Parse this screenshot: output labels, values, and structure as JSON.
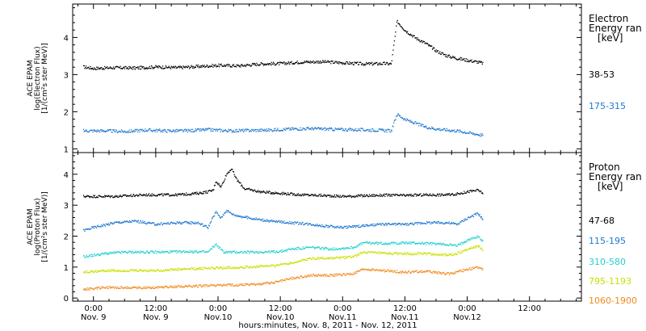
{
  "chart_data": {
    "type": "scatter",
    "x_axis": {
      "title": "hours:minutes, Nov. 8, 2011 - Nov. 12, 2011",
      "range_hours": [
        -4,
        94
      ],
      "ticks": [
        {
          "h": 0,
          "time": "0:00",
          "date": "Nov. 9"
        },
        {
          "h": 12,
          "time": "12:00",
          "date": "Nov. 9"
        },
        {
          "h": 24,
          "time": "0:00",
          "date": "Nov.10"
        },
        {
          "h": 36,
          "time": "12:00",
          "date": "Nov.10"
        },
        {
          "h": 48,
          "time": "0:00",
          "date": "Nov.11"
        },
        {
          "h": 60,
          "time": "12:00",
          "date": "Nov.11"
        },
        {
          "h": 72,
          "time": "0:00",
          "date": "Nov.12"
        },
        {
          "h": 84,
          "time": "12:00",
          "date": ""
        }
      ]
    },
    "panels": [
      {
        "id": "electron",
        "ylabel": [
          "ACE EPAM",
          "log(Electron Flux)",
          "[1/(cm²s ster MeV)]"
        ],
        "ylim": [
          0.9,
          4.9
        ],
        "yticks": [
          1,
          2,
          3,
          4
        ],
        "legend_title": [
          "Electron",
          "Energy ran",
          "[keV]"
        ],
        "series": [
          {
            "name": "38-53",
            "color": "#000000",
            "points": [
              [
                -2,
                3.22
              ],
              [
                0,
                3.18
              ],
              [
                4,
                3.2
              ],
              [
                8,
                3.19
              ],
              [
                12,
                3.22
              ],
              [
                16,
                3.2
              ],
              [
                20,
                3.23
              ],
              [
                24,
                3.26
              ],
              [
                28,
                3.25
              ],
              [
                32,
                3.3
              ],
              [
                36,
                3.31
              ],
              [
                40,
                3.35
              ],
              [
                44,
                3.36
              ],
              [
                48,
                3.33
              ],
              [
                52,
                3.3
              ],
              [
                56,
                3.31
              ],
              [
                57.3,
                3.3
              ],
              [
                58.4,
                4.45
              ],
              [
                60,
                4.2
              ],
              [
                62,
                4.0
              ],
              [
                64,
                3.85
              ],
              [
                66,
                3.65
              ],
              [
                68,
                3.52
              ],
              [
                70,
                3.45
              ],
              [
                72,
                3.4
              ],
              [
                74,
                3.35
              ],
              [
                75,
                3.32
              ]
            ]
          },
          {
            "name": "175-315",
            "color": "#1f78d0",
            "points": [
              [
                -2,
                1.5
              ],
              [
                2,
                1.5
              ],
              [
                6,
                1.48
              ],
              [
                10,
                1.52
              ],
              [
                14,
                1.5
              ],
              [
                18,
                1.5
              ],
              [
                22,
                1.53
              ],
              [
                26,
                1.5
              ],
              [
                30,
                1.51
              ],
              [
                34,
                1.52
              ],
              [
                38,
                1.55
              ],
              [
                42,
                1.56
              ],
              [
                46,
                1.54
              ],
              [
                50,
                1.53
              ],
              [
                54,
                1.52
              ],
              [
                57.3,
                1.5
              ],
              [
                58.4,
                1.95
              ],
              [
                60,
                1.8
              ],
              [
                62,
                1.7
              ],
              [
                64,
                1.6
              ],
              [
                66,
                1.55
              ],
              [
                68,
                1.52
              ],
              [
                70,
                1.5
              ],
              [
                72,
                1.45
              ],
              [
                75,
                1.38
              ]
            ]
          }
        ]
      },
      {
        "id": "proton",
        "ylabel": [
          "ACE EPAM",
          "log(Proton Flux)",
          "[1/(cm²s ster MeV)]"
        ],
        "ylim": [
          -0.1,
          4.7
        ],
        "yticks": [
          0,
          1,
          2,
          3,
          4
        ],
        "legend_title": [
          "Proton",
          "Energy ran",
          "[keV]"
        ],
        "series": [
          {
            "name": "47-68",
            "color": "#000000",
            "points": [
              [
                -2,
                3.3
              ],
              [
                4,
                3.3
              ],
              [
                10,
                3.35
              ],
              [
                16,
                3.35
              ],
              [
                20,
                3.4
              ],
              [
                22,
                3.45
              ],
              [
                23,
                3.5
              ],
              [
                23.5,
                3.8
              ],
              [
                24.5,
                3.6
              ],
              [
                25.5,
                4.0
              ],
              [
                26.5,
                4.2
              ],
              [
                27.5,
                3.85
              ],
              [
                29,
                3.55
              ],
              [
                32,
                3.45
              ],
              [
                36,
                3.4
              ],
              [
                40,
                3.35
              ],
              [
                44,
                3.33
              ],
              [
                48,
                3.3
              ],
              [
                52,
                3.32
              ],
              [
                56,
                3.34
              ],
              [
                60,
                3.33
              ],
              [
                64,
                3.35
              ],
              [
                68,
                3.35
              ],
              [
                70,
                3.38
              ],
              [
                72,
                3.45
              ],
              [
                74,
                3.5
              ],
              [
                75,
                3.4
              ]
            ]
          },
          {
            "name": "115-195",
            "color": "#1f78d0",
            "points": [
              [
                -2,
                2.2
              ],
              [
                0,
                2.3
              ],
              [
                4,
                2.45
              ],
              [
                8,
                2.5
              ],
              [
                12,
                2.4
              ],
              [
                16,
                2.45
              ],
              [
                20,
                2.45
              ],
              [
                22,
                2.3
              ],
              [
                23.5,
                2.8
              ],
              [
                24.5,
                2.6
              ],
              [
                25.5,
                2.85
              ],
              [
                27,
                2.7
              ],
              [
                30,
                2.6
              ],
              [
                34,
                2.5
              ],
              [
                38,
                2.45
              ],
              [
                42,
                2.4
              ],
              [
                44,
                2.35
              ],
              [
                48,
                2.3
              ],
              [
                52,
                2.35
              ],
              [
                56,
                2.4
              ],
              [
                60,
                2.4
              ],
              [
                64,
                2.45
              ],
              [
                68,
                2.45
              ],
              [
                70,
                2.4
              ],
              [
                72,
                2.6
              ],
              [
                74,
                2.75
              ],
              [
                75,
                2.55
              ]
            ]
          },
          {
            "name": "310-580",
            "color": "#20d0d0",
            "points": [
              [
                -2,
                1.35
              ],
              [
                2,
                1.45
              ],
              [
                6,
                1.5
              ],
              [
                10,
                1.5
              ],
              [
                14,
                1.5
              ],
              [
                18,
                1.52
              ],
              [
                22,
                1.5
              ],
              [
                23.5,
                1.75
              ],
              [
                25,
                1.5
              ],
              [
                28,
                1.5
              ],
              [
                32,
                1.5
              ],
              [
                36,
                1.52
              ],
              [
                38,
                1.6
              ],
              [
                42,
                1.65
              ],
              [
                46,
                1.6
              ],
              [
                50,
                1.65
              ],
              [
                52,
                1.8
              ],
              [
                56,
                1.78
              ],
              [
                60,
                1.8
              ],
              [
                64,
                1.78
              ],
              [
                68,
                1.75
              ],
              [
                70,
                1.7
              ],
              [
                72,
                1.9
              ],
              [
                74,
                2.0
              ],
              [
                75,
                1.85
              ]
            ]
          },
          {
            "name": "795-1193",
            "color": "#c8e000",
            "points": [
              [
                -2,
                0.85
              ],
              [
                2,
                0.9
              ],
              [
                6,
                0.9
              ],
              [
                10,
                0.9
              ],
              [
                14,
                0.92
              ],
              [
                18,
                0.95
              ],
              [
                22,
                0.98
              ],
              [
                26,
                1.0
              ],
              [
                30,
                1.02
              ],
              [
                34,
                1.05
              ],
              [
                38,
                1.15
              ],
              [
                42,
                1.3
              ],
              [
                46,
                1.3
              ],
              [
                50,
                1.35
              ],
              [
                52,
                1.5
              ],
              [
                56,
                1.45
              ],
              [
                60,
                1.45
              ],
              [
                64,
                1.45
              ],
              [
                68,
                1.4
              ],
              [
                70,
                1.45
              ],
              [
                72,
                1.6
              ],
              [
                74,
                1.7
              ],
              [
                75,
                1.55
              ]
            ]
          },
          {
            "name": "1060-1900",
            "color": "#f08a1e",
            "points": [
              [
                -2,
                0.3
              ],
              [
                2,
                0.35
              ],
              [
                6,
                0.35
              ],
              [
                10,
                0.35
              ],
              [
                14,
                0.38
              ],
              [
                18,
                0.4
              ],
              [
                22,
                0.42
              ],
              [
                26,
                0.43
              ],
              [
                30,
                0.45
              ],
              [
                34,
                0.5
              ],
              [
                38,
                0.65
              ],
              [
                42,
                0.75
              ],
              [
                46,
                0.75
              ],
              [
                50,
                0.8
              ],
              [
                52,
                0.95
              ],
              [
                56,
                0.9
              ],
              [
                60,
                0.85
              ],
              [
                64,
                0.88
              ],
              [
                68,
                0.8
              ],
              [
                70,
                0.85
              ],
              [
                72,
                0.95
              ],
              [
                74,
                1.0
              ],
              [
                75,
                0.95
              ]
            ]
          }
        ]
      }
    ]
  }
}
